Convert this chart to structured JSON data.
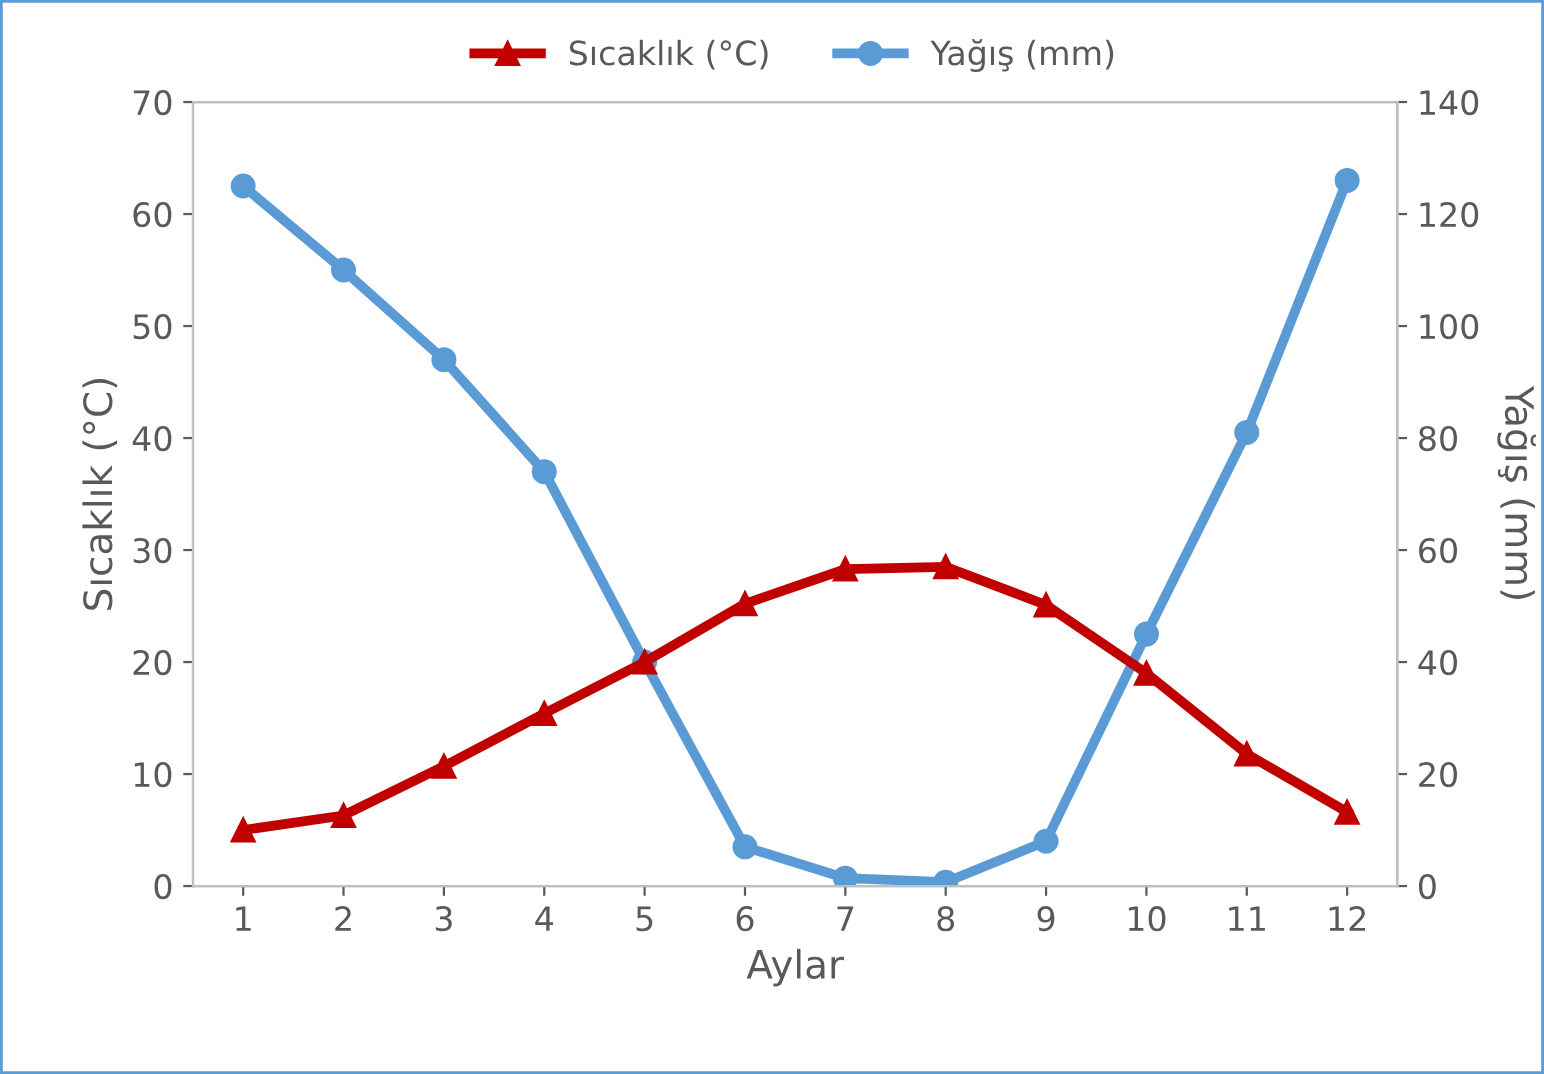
{
  "chart_data": {
    "type": "line",
    "xlabel": "Aylar",
    "ylabel": "Sıcaklık (°C)",
    "y2label": "Yağış (mm)",
    "categories": [
      "1",
      "2",
      "3",
      "4",
      "5",
      "6",
      "7",
      "8",
      "9",
      "10",
      "11",
      "12"
    ],
    "series": [
      {
        "name": "Sıcaklık (°C)",
        "color": "#c00000",
        "marker": "triangle",
        "values": [
          5.0,
          6.3,
          10.7,
          15.4,
          20.0,
          25.2,
          28.3,
          28.5,
          25.1,
          19.0,
          11.8,
          6.6
        ]
      },
      {
        "name": "Yağış (mm)",
        "color": "#5b9bd5",
        "marker": "circle",
        "axis": "y2",
        "values": [
          125,
          110,
          94,
          74,
          40,
          7,
          1.4,
          0.7,
          8,
          45,
          81,
          126
        ]
      }
    ],
    "ylim": [
      0,
      70
    ],
    "yticks": [
      0,
      10,
      20,
      30,
      40,
      50,
      60,
      70
    ],
    "y2lim": [
      0,
      140
    ],
    "y2ticks": [
      0,
      20,
      40,
      60,
      80,
      100,
      120,
      140
    ],
    "grid": false,
    "legend": "top",
    "line_style": "solid"
  }
}
